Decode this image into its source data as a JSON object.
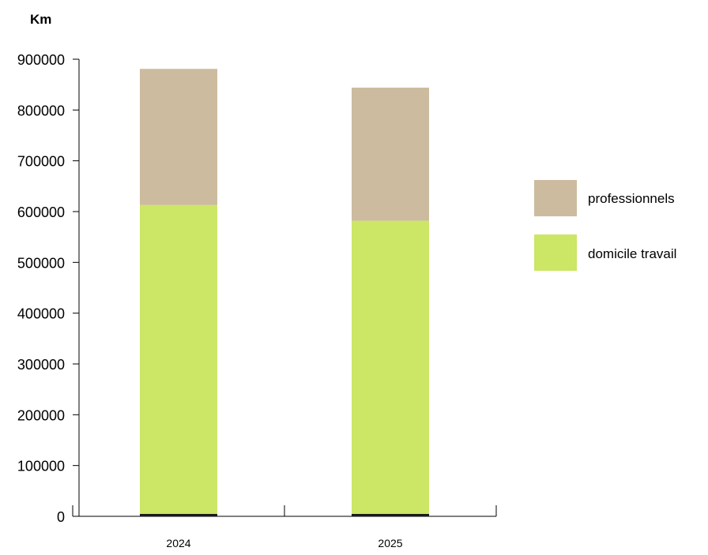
{
  "chart_data": {
    "type": "bar",
    "stacked": true,
    "unit_label": "Km",
    "categories": [
      "2024",
      "2025"
    ],
    "series": [
      {
        "name": "domicile travail",
        "color": "#cce666",
        "values": [
          613000,
          582000
        ]
      },
      {
        "name": "professionnels",
        "color": "#ccbb9f",
        "values": [
          268000,
          262000
        ]
      }
    ],
    "totals": [
      881000,
      844000
    ],
    "ylim": [
      0,
      900000
    ],
    "yticks": [
      "0",
      "100000",
      "200000",
      "300000",
      "400000",
      "500000",
      "600000",
      "700000",
      "800000",
      "900000"
    ],
    "grid": false,
    "legend_position": "right",
    "legend": [
      "professionnels",
      "domicile travail"
    ]
  }
}
